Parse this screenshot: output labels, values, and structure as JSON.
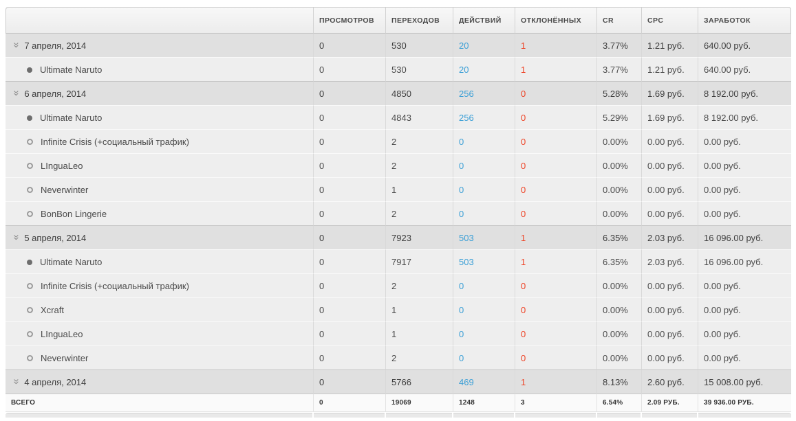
{
  "colors": {
    "link_blue": "#3b9fd6",
    "alert_red": "#ee4123",
    "date_row_bg": "#e0e0e0",
    "offer_row_bg": "#eeeeee",
    "header_bg": "#f0f0f0"
  },
  "icons": {
    "collapse": "»",
    "filled_bullet": "active-offer-dot",
    "open_bullet": "inactive-offer-dot"
  },
  "table": {
    "header": {
      "name": "",
      "views": "ПРОСМОТРОВ",
      "clicks": "ПЕРЕХОДОВ",
      "actions": "ДЕЙСТВИЙ",
      "rejected": "ОТКЛОНЁННЫХ",
      "cr": "CR",
      "cpc": "CPC",
      "earnings": "ЗАРАБОТОК"
    },
    "rows": [
      {
        "type": "date",
        "name": "7 апреля, 2014",
        "views": "0",
        "clicks": "530",
        "actions": "20",
        "rejected": "1",
        "cr": "3.77%",
        "cpc": "1.21 руб.",
        "earnings": "640.00 руб."
      },
      {
        "type": "offer",
        "bullet": "filled",
        "name": "Ultimate Naruto",
        "views": "0",
        "clicks": "530",
        "actions": "20",
        "rejected": "1",
        "cr": "3.77%",
        "cpc": "1.21 руб.",
        "earnings": "640.00 руб."
      },
      {
        "type": "date",
        "name": "6 апреля, 2014",
        "views": "0",
        "clicks": "4850",
        "actions": "256",
        "rejected": "0",
        "cr": "5.28%",
        "cpc": "1.69 руб.",
        "earnings": "8 192.00 руб."
      },
      {
        "type": "offer",
        "bullet": "filled",
        "name": "Ultimate Naruto",
        "views": "0",
        "clicks": "4843",
        "actions": "256",
        "rejected": "0",
        "cr": "5.29%",
        "cpc": "1.69 руб.",
        "earnings": "8 192.00 руб."
      },
      {
        "type": "offer",
        "bullet": "open",
        "name": "Infinite Crisis (+социальный трафик)",
        "views": "0",
        "clicks": "2",
        "actions": "0",
        "rejected": "0",
        "cr": "0.00%",
        "cpc": "0.00 руб.",
        "earnings": "0.00 руб."
      },
      {
        "type": "offer",
        "bullet": "open",
        "name": "LInguaLeo",
        "views": "0",
        "clicks": "2",
        "actions": "0",
        "rejected": "0",
        "cr": "0.00%",
        "cpc": "0.00 руб.",
        "earnings": "0.00 руб."
      },
      {
        "type": "offer",
        "bullet": "open",
        "name": "Neverwinter",
        "views": "0",
        "clicks": "1",
        "actions": "0",
        "rejected": "0",
        "cr": "0.00%",
        "cpc": "0.00 руб.",
        "earnings": "0.00 руб."
      },
      {
        "type": "offer",
        "bullet": "open",
        "name": "BonBon Lingerie",
        "views": "0",
        "clicks": "2",
        "actions": "0",
        "rejected": "0",
        "cr": "0.00%",
        "cpc": "0.00 руб.",
        "earnings": "0.00 руб."
      },
      {
        "type": "date",
        "name": "5 апреля, 2014",
        "views": "0",
        "clicks": "7923",
        "actions": "503",
        "rejected": "1",
        "cr": "6.35%",
        "cpc": "2.03 руб.",
        "earnings": "16 096.00 руб."
      },
      {
        "type": "offer",
        "bullet": "filled",
        "name": "Ultimate Naruto",
        "views": "0",
        "clicks": "7917",
        "actions": "503",
        "rejected": "1",
        "cr": "6.35%",
        "cpc": "2.03 руб.",
        "earnings": "16 096.00 руб."
      },
      {
        "type": "offer",
        "bullet": "open",
        "name": "Infinite Crisis (+социальный трафик)",
        "views": "0",
        "clicks": "2",
        "actions": "0",
        "rejected": "0",
        "cr": "0.00%",
        "cpc": "0.00 руб.",
        "earnings": "0.00 руб."
      },
      {
        "type": "offer",
        "bullet": "open",
        "name": "Xcraft",
        "views": "0",
        "clicks": "1",
        "actions": "0",
        "rejected": "0",
        "cr": "0.00%",
        "cpc": "0.00 руб.",
        "earnings": "0.00 руб."
      },
      {
        "type": "offer",
        "bullet": "open",
        "name": "LInguaLeo",
        "views": "0",
        "clicks": "1",
        "actions": "0",
        "rejected": "0",
        "cr": "0.00%",
        "cpc": "0.00 руб.",
        "earnings": "0.00 руб."
      },
      {
        "type": "offer",
        "bullet": "open",
        "name": "Neverwinter",
        "views": "0",
        "clicks": "2",
        "actions": "0",
        "rejected": "0",
        "cr": "0.00%",
        "cpc": "0.00 руб.",
        "earnings": "0.00 руб."
      },
      {
        "type": "date",
        "name": "4 апреля, 2014",
        "views": "0",
        "clicks": "5766",
        "actions": "469",
        "rejected": "1",
        "cr": "8.13%",
        "cpc": "2.60 руб.",
        "earnings": "15 008.00 руб."
      }
    ],
    "total": {
      "label": "ВСЕГО",
      "views": "0",
      "clicks": "19069",
      "actions": "1248",
      "rejected": "3",
      "cr": "6.54%",
      "cpc": "2.09 РУБ.",
      "earnings": "39 936.00 РУБ."
    }
  }
}
